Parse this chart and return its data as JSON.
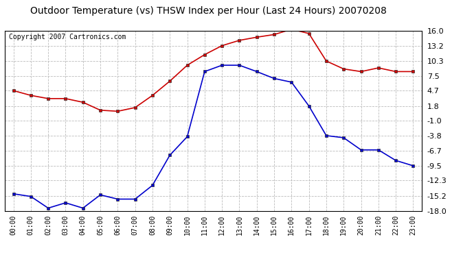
{
  "title": "Outdoor Temperature (vs) THSW Index per Hour (Last 24 Hours) 20070208",
  "copyright_text": "Copyright 2007 Cartronics.com",
  "hours": [
    "00:00",
    "01:00",
    "02:00",
    "03:00",
    "04:00",
    "05:00",
    "06:00",
    "07:00",
    "08:00",
    "09:00",
    "10:00",
    "11:00",
    "12:00",
    "13:00",
    "14:00",
    "15:00",
    "16:00",
    "17:00",
    "18:00",
    "19:00",
    "20:00",
    "21:00",
    "22:00",
    "23:00"
  ],
  "temp_red": [
    4.7,
    3.8,
    3.2,
    3.2,
    2.5,
    1.0,
    0.8,
    1.5,
    3.8,
    6.5,
    9.5,
    11.5,
    13.2,
    14.2,
    14.8,
    15.3,
    16.3,
    15.5,
    10.3,
    8.8,
    8.3,
    9.0,
    8.3,
    8.3
  ],
  "thsw_blue": [
    -14.8,
    -15.3,
    -17.5,
    -16.5,
    -17.5,
    -15.0,
    -15.8,
    -15.8,
    -13.2,
    -7.5,
    -4.0,
    8.3,
    9.5,
    9.5,
    8.3,
    7.0,
    6.3,
    1.8,
    -3.8,
    -4.2,
    -6.5,
    -6.5,
    -8.5,
    -9.5
  ],
  "ylim": [
    -18.0,
    16.0
  ],
  "yticks": [
    16.0,
    13.2,
    10.3,
    7.5,
    4.7,
    1.8,
    -1.0,
    -3.8,
    -6.7,
    -9.5,
    -12.3,
    -15.2,
    -18.0
  ],
  "bg_color": "#ffffff",
  "plot_bg_color": "#ffffff",
  "grid_color": "#bbbbbb",
  "red_color": "#cc0000",
  "blue_color": "#0000cc",
  "title_fontsize": 10,
  "copyright_fontsize": 7
}
